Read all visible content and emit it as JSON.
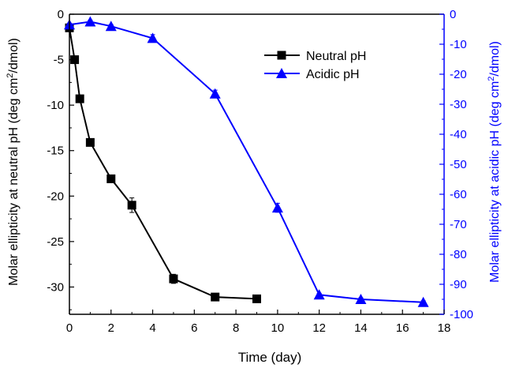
{
  "chart_data": {
    "type": "line",
    "xlabel": "Time (day)",
    "xlim": [
      0,
      18
    ],
    "x_ticks": [
      0,
      2,
      4,
      6,
      8,
      10,
      12,
      14,
      16,
      18
    ],
    "y_left": {
      "label_prefix": "Molar ellipticity at neutral pH (deg cm",
      "label_sup": "2",
      "label_suffix": "/dmol)",
      "lim": [
        -33,
        0
      ],
      "ticks": [
        0,
        -5,
        -10,
        -15,
        -20,
        -25,
        -30
      ],
      "color": "#000000"
    },
    "y_right": {
      "label_prefix": "Molar ellipticity at acidic pH (deg cm",
      "label_sup": "2",
      "label_suffix": "/dmol)",
      "lim": [
        -100,
        0
      ],
      "ticks": [
        0,
        -10,
        -20,
        -30,
        -40,
        -50,
        -60,
        -70,
        -80,
        -90,
        -100
      ],
      "color": "#0000ff"
    },
    "legend_position": "top-right",
    "series": [
      {
        "name": "Neutral pH",
        "axis": "left",
        "color": "#000000",
        "marker": "square",
        "x": [
          0,
          0.25,
          0.5,
          1,
          2,
          3,
          5,
          7,
          9
        ],
        "y": [
          -1.5,
          -5.0,
          -9.3,
          -14.1,
          -18.1,
          -21.0,
          -29.1,
          -31.1,
          -31.3
        ],
        "err": [
          0.2,
          0.2,
          0.2,
          0.2,
          0.3,
          0.8,
          0.5,
          0.3,
          0.2
        ]
      },
      {
        "name": "Acidic pH",
        "axis": "right",
        "color": "#0000ff",
        "marker": "triangle",
        "x": [
          0,
          1,
          2,
          4,
          7,
          10,
          12,
          14,
          17
        ],
        "y": [
          -3.5,
          -2.5,
          -4.0,
          -8.0,
          -26.5,
          -64.5,
          -93.5,
          -95.0,
          -96.0
        ],
        "err": [
          0.5,
          0.5,
          0.5,
          1.2,
          1.2,
          1.5,
          0.5,
          0.5,
          0.5
        ]
      }
    ]
  }
}
